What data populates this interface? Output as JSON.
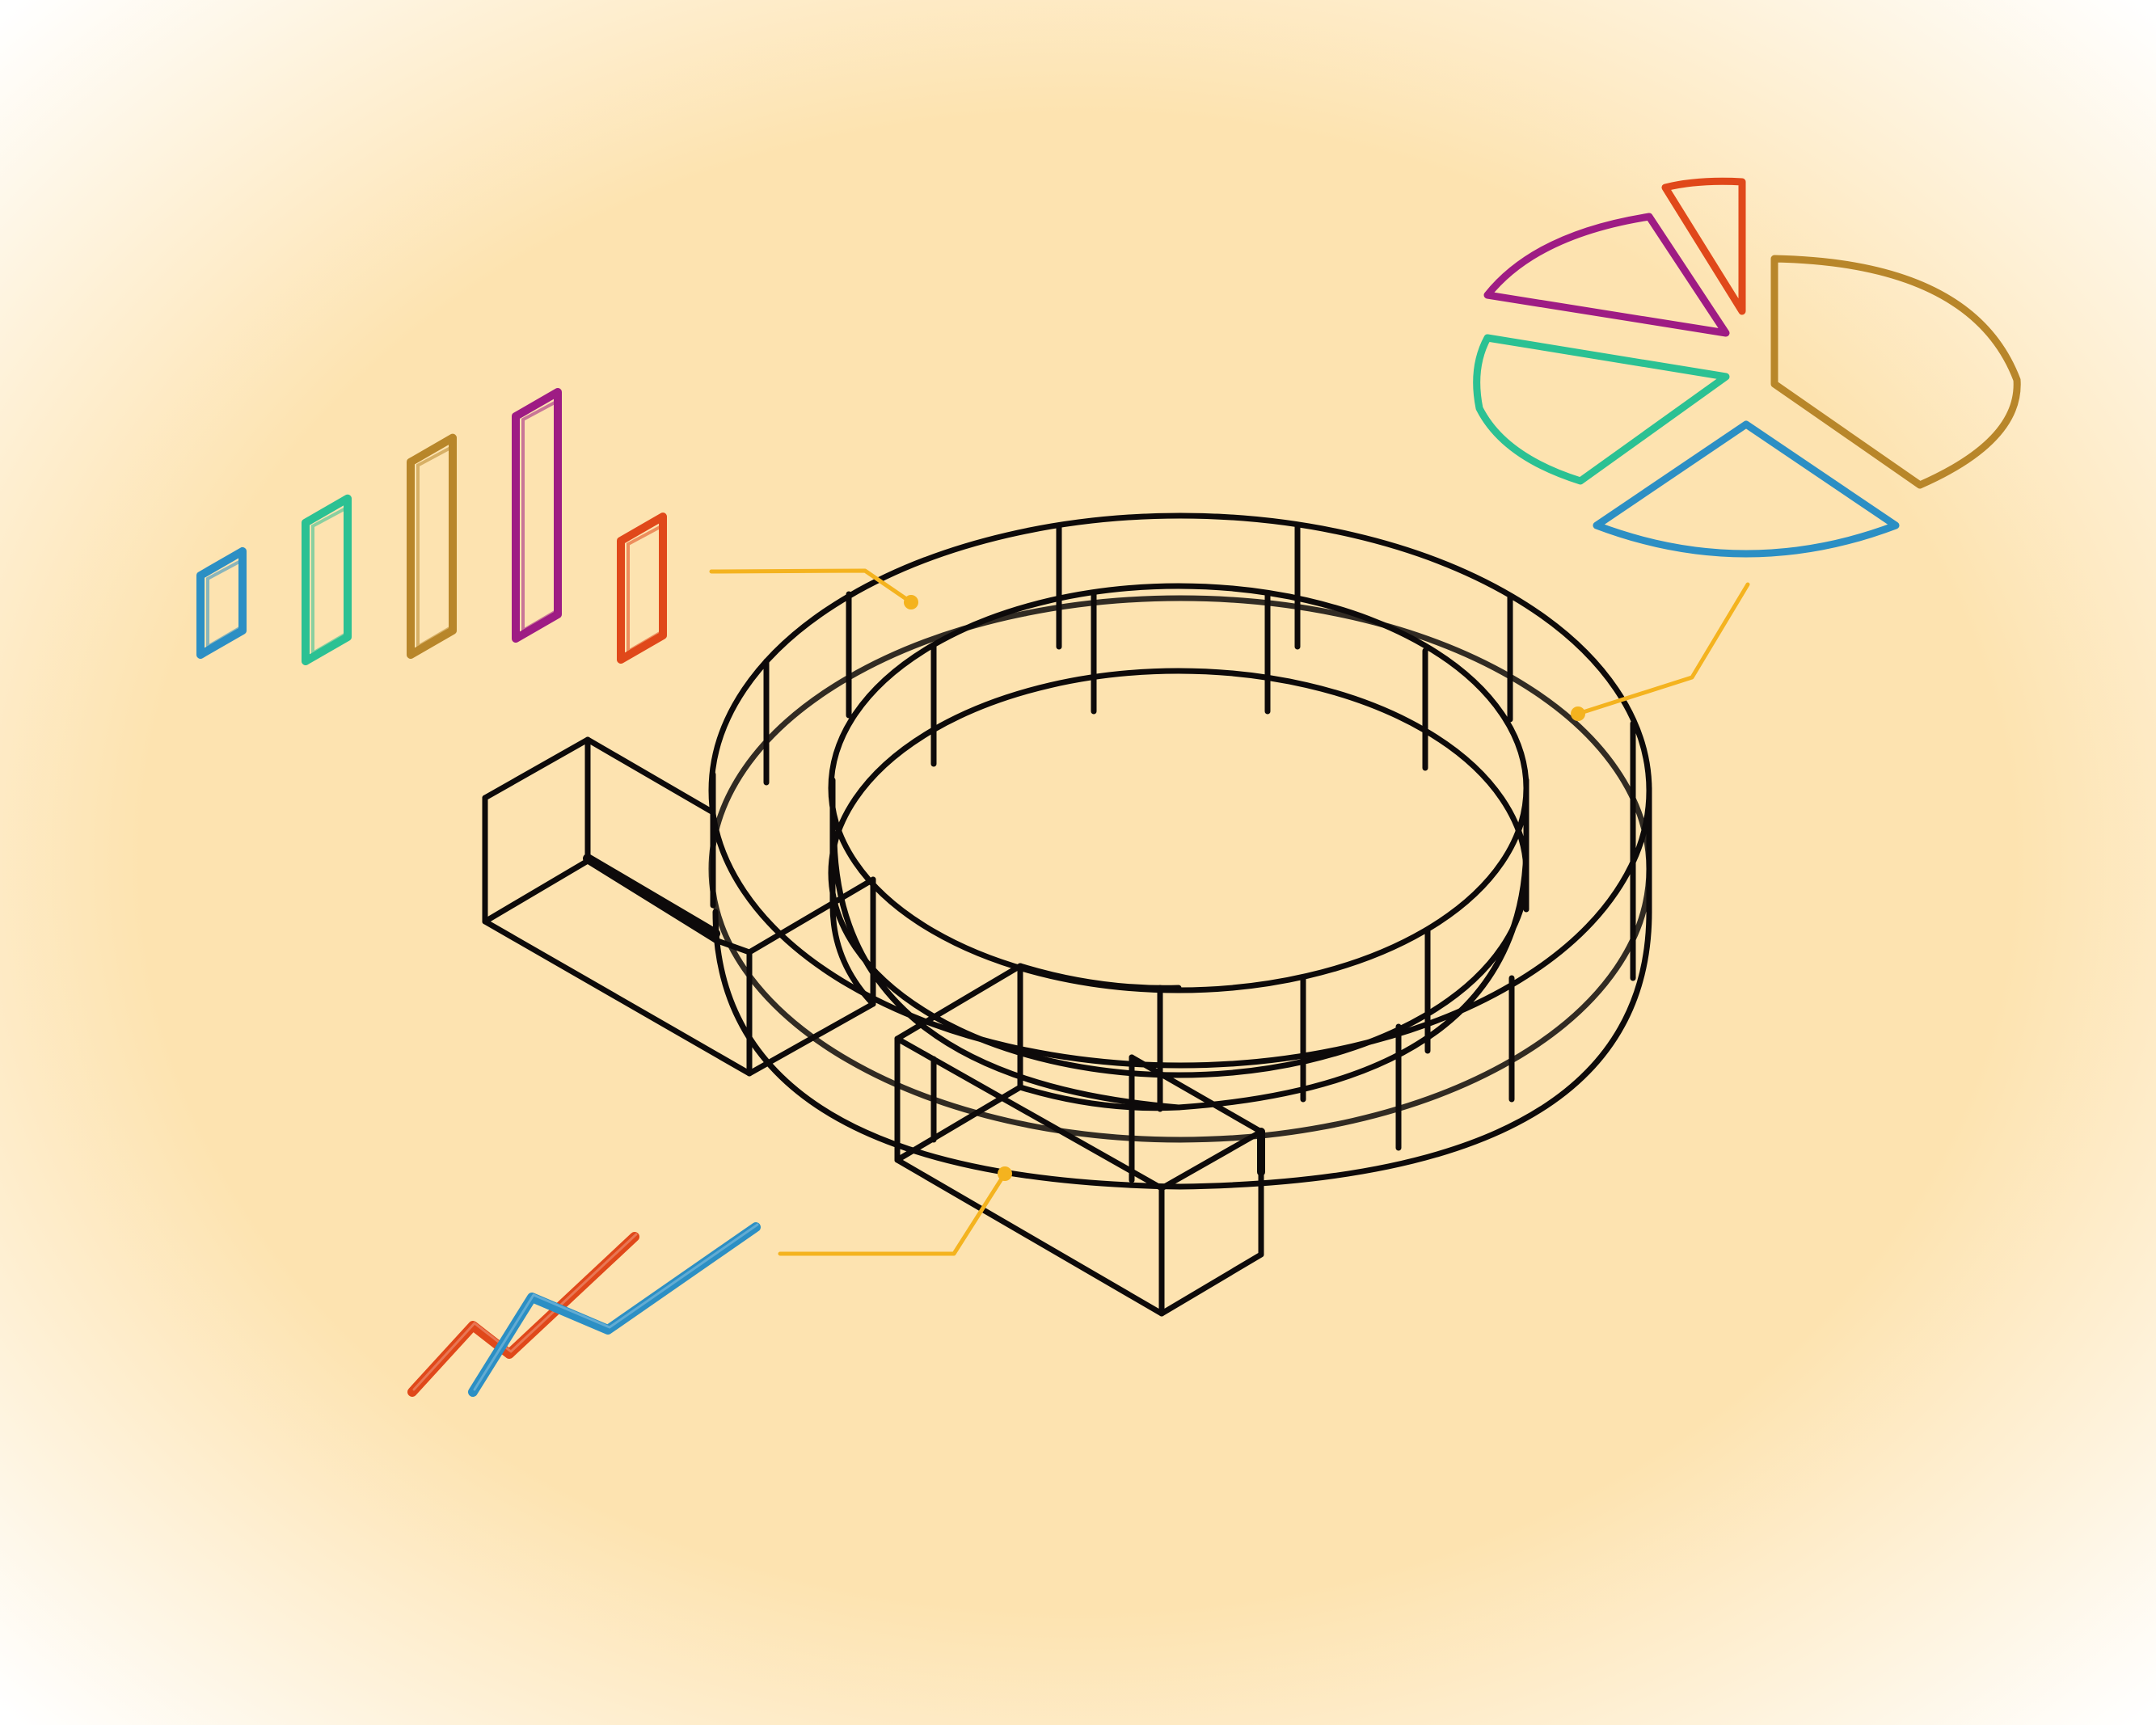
{
  "colors": {
    "background_center": "#FDE3B0",
    "background_edge": "#FFFFFF",
    "outline": "#0D0A0A",
    "callout": "#F4B31F",
    "blue": "#2C8FC4",
    "green": "#2BC193",
    "gold": "#B8862A",
    "magenta": "#9E1C84",
    "orange": "#E0481A"
  },
  "icons": {
    "bar_chart": "isometric-bar-chart-icon",
    "pie_chart": "exploded-pie-chart-icon",
    "line_chart": "line-chart-icon",
    "magnifier": "wireframe-magnifier-icon"
  },
  "bar_chart": {
    "values": [
      0.42,
      0.66,
      0.88,
      1.0,
      0.58
    ],
    "colors": [
      "blue",
      "green",
      "gold",
      "magenta",
      "orange"
    ]
  },
  "pie_chart": {
    "slices": [
      {
        "fraction": 0.08,
        "color": "orange"
      },
      {
        "fraction": 0.34,
        "color": "gold"
      },
      {
        "fraction": 0.17,
        "color": "blue"
      },
      {
        "fraction": 0.22,
        "color": "green"
      },
      {
        "fraction": 0.19,
        "color": "magenta"
      }
    ]
  },
  "line_chart": {
    "series": [
      {
        "color": "orange",
        "values": [
          0.0,
          0.38,
          0.22,
          1.0
        ]
      },
      {
        "color": "blue",
        "values": [
          0.0,
          0.62,
          0.42,
          1.0
        ]
      }
    ]
  }
}
